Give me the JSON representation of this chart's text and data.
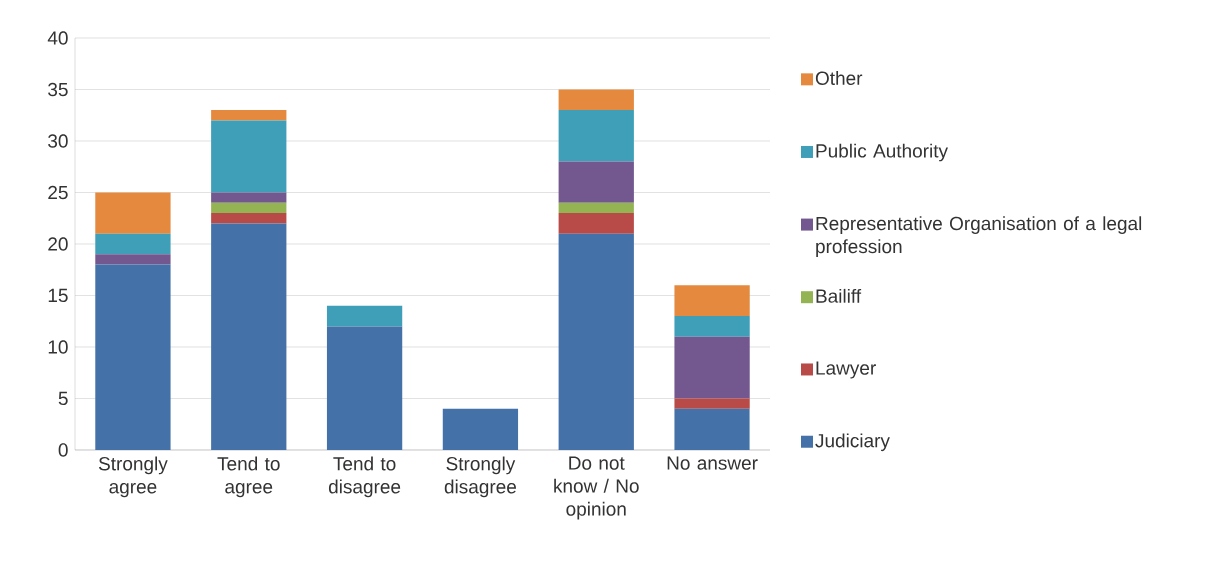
{
  "chart_data": {
    "type": "bar",
    "stacked": true,
    "grid": "y",
    "legend": "right",
    "categories": [
      "Strongly agree",
      "Tend to agree",
      "Tend to disagree",
      "Strongly disagree",
      "Do not know / No opinion",
      "No answer"
    ],
    "ylim": [
      0,
      40
    ],
    "yticks": [
      0,
      5,
      10,
      15,
      20,
      25,
      30,
      35,
      40
    ],
    "series": [
      {
        "name": "Judiciary",
        "color": "#4472a8",
        "values": [
          18,
          22,
          12,
          4,
          21,
          4
        ]
      },
      {
        "name": "Lawyer",
        "color": "#b84b47",
        "values": [
          0,
          1,
          0,
          0,
          2,
          1
        ]
      },
      {
        "name": "Bailiff",
        "color": "#94b454",
        "values": [
          0,
          1,
          0,
          0,
          1,
          0
        ]
      },
      {
        "name": "Representative Organisation of a legal profession",
        "color": "#73578f",
        "values": [
          1,
          1,
          0,
          0,
          4,
          6
        ]
      },
      {
        "name": "Public Authority",
        "color": "#3f9fb8",
        "values": [
          2,
          7,
          2,
          0,
          5,
          2
        ]
      },
      {
        "name": "Other",
        "color": "#e4893d",
        "values": [
          4,
          1,
          0,
          0,
          2,
          3
        ]
      }
    ]
  }
}
